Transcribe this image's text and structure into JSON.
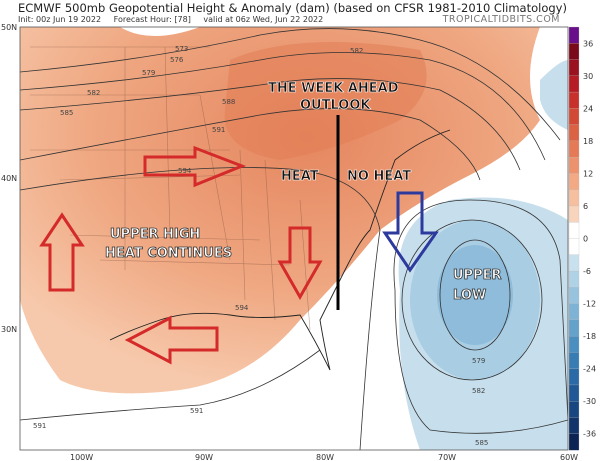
{
  "header": {
    "title": "ECMWF 500mb Geopotential Height & Anomaly (dam) (based on CFSR 1981-2010 Climatology)",
    "init": "Init: 00z Jun 19 2022",
    "forecast_hour": "Forecast Hour: [78]",
    "valid": "valid at 06z Wed, Jun 22 2022",
    "credit": "TROPICALTIDBITS.COM"
  },
  "map": {
    "lat_labels": [
      "50N",
      "40N",
      "30N"
    ],
    "lon_labels": [
      "100W",
      "90W",
      "80W",
      "70W",
      "60W"
    ],
    "contour_labels": [
      "573",
      "576",
      "579",
      "582",
      "585",
      "588",
      "591",
      "594",
      "591",
      "579",
      "582",
      "585",
      "591",
      "594"
    ],
    "annotations": {
      "headline_1": "THE WEEK AHEAD",
      "headline_2": "OUTLOOK",
      "heat": "HEAT",
      "no_heat": "NO HEAT",
      "upper_high_1": "UPPER HIGH",
      "upper_high_2": "HEAT CONTINUES",
      "upper_low_1": "UPPER",
      "upper_low_2": "LOW"
    },
    "arrow_colors": {
      "heat": "#d42a2a",
      "cool": "#2c3a9e"
    }
  },
  "colorbar": {
    "labels": [
      "36",
      "30",
      "24",
      "18",
      "12",
      "6",
      "0",
      "-6",
      "-12",
      "-18",
      "-24",
      "-30",
      "-36"
    ],
    "colors": [
      "#6a0f8a",
      "#7a0a1a",
      "#9a1220",
      "#b51c25",
      "#c8302c",
      "#d24a36",
      "#dc6244",
      "#e57a57",
      "#ec926c",
      "#f2a984",
      "#f6bf9f",
      "#f9d4bd",
      "#ffffff",
      "#ffffff",
      "#c9e1ee",
      "#b0d2e6",
      "#97c3de",
      "#7eb3d5",
      "#64a1cb",
      "#4b8fc0",
      "#377db4",
      "#2a6aa6",
      "#1f5895",
      "#174680",
      "#11356a",
      "#0b2454"
    ]
  }
}
